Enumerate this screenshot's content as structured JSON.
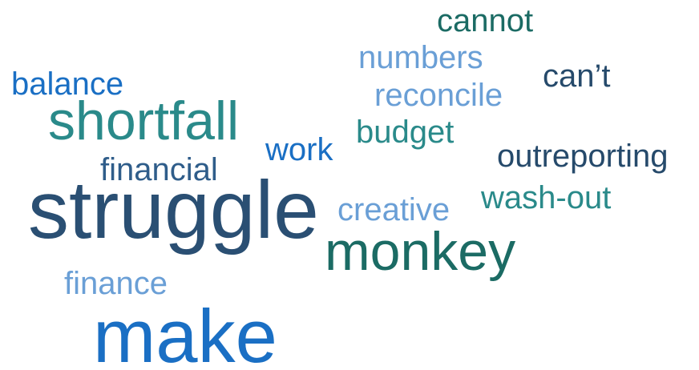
{
  "word_cloud": {
    "words": [
      {
        "id": "cannot",
        "text": "cannot",
        "color": "#1b6b64"
      },
      {
        "id": "numbers",
        "text": "numbers",
        "color": "#6a9fd6"
      },
      {
        "id": "balance",
        "text": "balance",
        "color": "#1a6fc4"
      },
      {
        "id": "cant",
        "text": "can’t",
        "color": "#264a6b"
      },
      {
        "id": "reconcile",
        "text": "reconcile",
        "color": "#6a9fd6"
      },
      {
        "id": "shortfall",
        "text": "shortfall",
        "color": "#2a8a8a"
      },
      {
        "id": "budget",
        "text": "budget",
        "color": "#2a8a8a"
      },
      {
        "id": "work",
        "text": "work",
        "color": "#1a6fc4"
      },
      {
        "id": "outreporting",
        "text": "outreporting",
        "color": "#264a6b"
      },
      {
        "id": "financial",
        "text": "financial",
        "color": "#2f5d8a"
      },
      {
        "id": "wash-out",
        "text": "wash-out",
        "color": "#2a8a8a"
      },
      {
        "id": "creative",
        "text": "creative",
        "color": "#6a9fd6"
      },
      {
        "id": "struggle",
        "text": "struggle",
        "color": "#2a4f73"
      },
      {
        "id": "monkey",
        "text": "monkey",
        "color": "#1b6b64"
      },
      {
        "id": "finance",
        "text": "finance",
        "color": "#6a9fd6"
      },
      {
        "id": "make",
        "text": "make",
        "color": "#1a6fc4"
      }
    ]
  }
}
